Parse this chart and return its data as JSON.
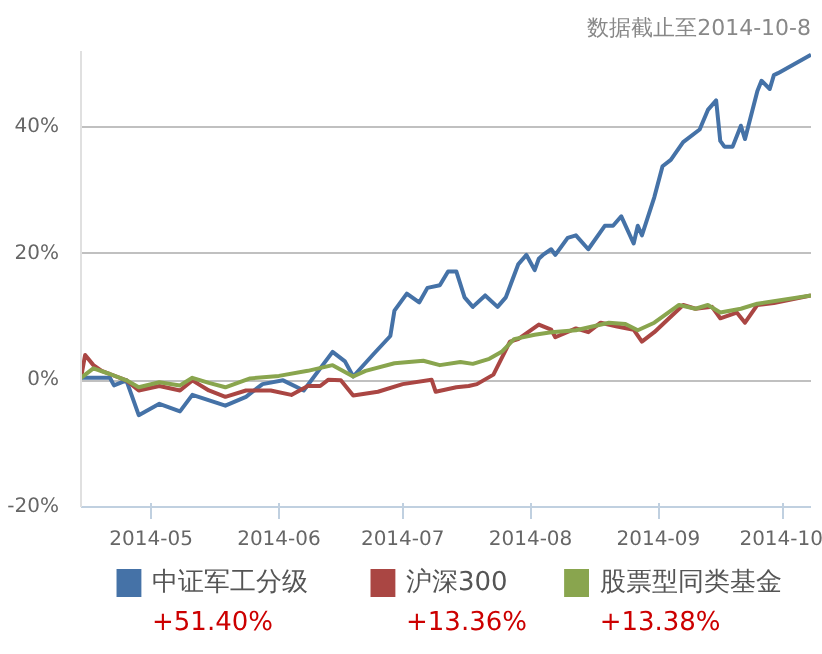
{
  "chart_data": {
    "type": "line",
    "title": "数据截止至2014-10-8",
    "xlim": [
      "2014-04-14",
      "2014-10-08"
    ],
    "xticks": [
      {
        "value": "2014-05-01",
        "label": "2014-05"
      },
      {
        "value": "2014-06-01",
        "label": "2014-06"
      },
      {
        "value": "2014-07-01",
        "label": "2014-07"
      },
      {
        "value": "2014-08-01",
        "label": "2014-08"
      },
      {
        "value": "2014-09-01",
        "label": "2014-09"
      },
      {
        "value": "2014-10-01",
        "label": "2014-10"
      }
    ],
    "ylim": [
      -20,
      52
    ],
    "yticks": [
      {
        "value": -20,
        "label": "-20%"
      },
      {
        "value": 0,
        "label": "0%"
      },
      {
        "value": 20,
        "label": "20%"
      },
      {
        "value": 40,
        "label": "40%"
      }
    ],
    "grid": "y",
    "legend": "bottom",
    "annotations": [
      "+51.40%",
      "+13.36%",
      "+13.38%"
    ],
    "series": [
      {
        "name": "中证军工分级",
        "color": "#4572a7",
        "x": [
          "2014-04-14",
          "2014-04-21",
          "2014-04-22",
          "2014-04-25",
          "2014-04-28",
          "2014-05-03",
          "2014-05-08",
          "2014-05-11",
          "2014-05-19",
          "2014-05-24",
          "2014-05-28",
          "2014-06-02",
          "2014-06-07",
          "2014-06-14",
          "2014-06-17",
          "2014-06-19",
          "2014-06-24",
          "2014-06-28",
          "2014-06-29",
          "2014-07-02",
          "2014-07-05",
          "2014-07-07",
          "2014-07-10",
          "2014-07-12",
          "2014-07-14",
          "2014-07-16",
          "2014-07-18",
          "2014-07-21",
          "2014-07-24",
          "2014-07-26",
          "2014-07-29",
          "2014-07-31",
          "2014-08-02",
          "2014-08-03",
          "2014-08-04",
          "2014-08-06",
          "2014-08-07",
          "2014-08-10",
          "2014-08-12",
          "2014-08-15",
          "2014-08-19",
          "2014-08-21",
          "2014-08-23",
          "2014-08-26",
          "2014-08-27",
          "2014-08-28",
          "2014-08-31",
          "2014-09-02",
          "2014-09-04",
          "2014-09-07",
          "2014-09-11",
          "2014-09-13",
          "2014-09-15",
          "2014-09-16",
          "2014-09-17",
          "2014-09-19",
          "2014-09-21",
          "2014-09-22",
          "2014-09-25",
          "2014-09-26",
          "2014-09-28",
          "2014-09-29",
          "2014-09-30",
          "2014-10-08"
        ],
        "values": [
          0.4,
          0.4,
          -0.8,
          0,
          -5.5,
          -3.7,
          -4.9,
          -2.3,
          -4,
          -2.6,
          -0.6,
          0,
          -1.6,
          4.5,
          3,
          0.6,
          4.2,
          7,
          11,
          13.7,
          12.3,
          14.6,
          15,
          17.2,
          17.2,
          13.1,
          11.6,
          13.4,
          11.6,
          13.1,
          18.3,
          19.8,
          17.4,
          19.2,
          19.8,
          20.7,
          19.8,
          22.5,
          22.9,
          20.7,
          24.4,
          24.4,
          25.9,
          21.6,
          24.4,
          22.9,
          28.9,
          33.8,
          34.8,
          37.6,
          39.6,
          42.7,
          44.2,
          37.8,
          36.9,
          36.9,
          40.2,
          38.1,
          45.7,
          47.3,
          46,
          48.2,
          48.5,
          51.4
        ]
      },
      {
        "name": "沪深300",
        "color": "#aa4643",
        "x": [
          "2014-04-14",
          "2014-04-15",
          "2014-04-17",
          "2014-04-19",
          "2014-04-21",
          "2014-04-25",
          "2014-04-28",
          "2014-05-03",
          "2014-05-08",
          "2014-05-11",
          "2014-05-15",
          "2014-05-19",
          "2014-05-24",
          "2014-05-30",
          "2014-06-04",
          "2014-06-08",
          "2014-06-11",
          "2014-06-13",
          "2014-06-16",
          "2014-06-19",
          "2014-06-25",
          "2014-07-01",
          "2014-07-08",
          "2014-07-09",
          "2014-07-14",
          "2014-07-17",
          "2014-07-19",
          "2014-07-23",
          "2014-07-27",
          "2014-07-29",
          "2014-08-03",
          "2014-08-06",
          "2014-08-07",
          "2014-08-12",
          "2014-08-15",
          "2014-08-18",
          "2014-08-22",
          "2014-08-26",
          "2014-08-28",
          "2014-08-31",
          "2014-09-07",
          "2014-09-10",
          "2014-09-14",
          "2014-09-16",
          "2014-09-20",
          "2014-09-22",
          "2014-09-25",
          "2014-09-29",
          "2014-10-08"
        ],
        "values": [
          0.4,
          4,
          2.4,
          1.5,
          1,
          0,
          -1.6,
          -0.9,
          -1.6,
          0,
          -1.6,
          -2.6,
          -1.6,
          -1.6,
          -2.3,
          -0.9,
          -0.9,
          0.1,
          0,
          -2.4,
          -1.8,
          -0.6,
          0.1,
          -1.8,
          -1.1,
          -0.9,
          -0.6,
          0.9,
          6.1,
          6.5,
          8.8,
          8,
          6.8,
          8.2,
          7.6,
          9.1,
          8.5,
          8,
          6.1,
          7.6,
          11.9,
          11.3,
          11.6,
          9.8,
          10.7,
          9.1,
          11.9,
          12.2,
          13.4
        ]
      },
      {
        "name": "股票型同类基金",
        "color": "#89a54e",
        "x": [
          "2014-04-14",
          "2014-04-17",
          "2014-04-21",
          "2014-04-25",
          "2014-04-28",
          "2014-05-03",
          "2014-05-08",
          "2014-05-11",
          "2014-05-15",
          "2014-05-19",
          "2014-05-25",
          "2014-06-01",
          "2014-06-08",
          "2014-06-14",
          "2014-06-19",
          "2014-06-22",
          "2014-06-29",
          "2014-07-06",
          "2014-07-10",
          "2014-07-15",
          "2014-07-18",
          "2014-07-22",
          "2014-07-25",
          "2014-07-28",
          "2014-08-02",
          "2014-08-06",
          "2014-08-12",
          "2014-08-20",
          "2014-08-24",
          "2014-08-27",
          "2014-08-31",
          "2014-09-06",
          "2014-09-10",
          "2014-09-13",
          "2014-09-16",
          "2014-09-21",
          "2014-09-25",
          "2014-10-08"
        ],
        "values": [
          0.4,
          1.9,
          1,
          0,
          -1.1,
          -0.3,
          -0.8,
          0.4,
          -0.4,
          -1.1,
          0.3,
          0.7,
          1.5,
          2.4,
          0.6,
          1.5,
          2.7,
          3.1,
          2.4,
          2.9,
          2.6,
          3.4,
          4.5,
          6.5,
          7.2,
          7.6,
          7.9,
          9.1,
          8.9,
          7.9,
          9.1,
          11.9,
          11.3,
          11.9,
          10.7,
          11.3,
          12.1,
          13.4
        ]
      }
    ]
  }
}
